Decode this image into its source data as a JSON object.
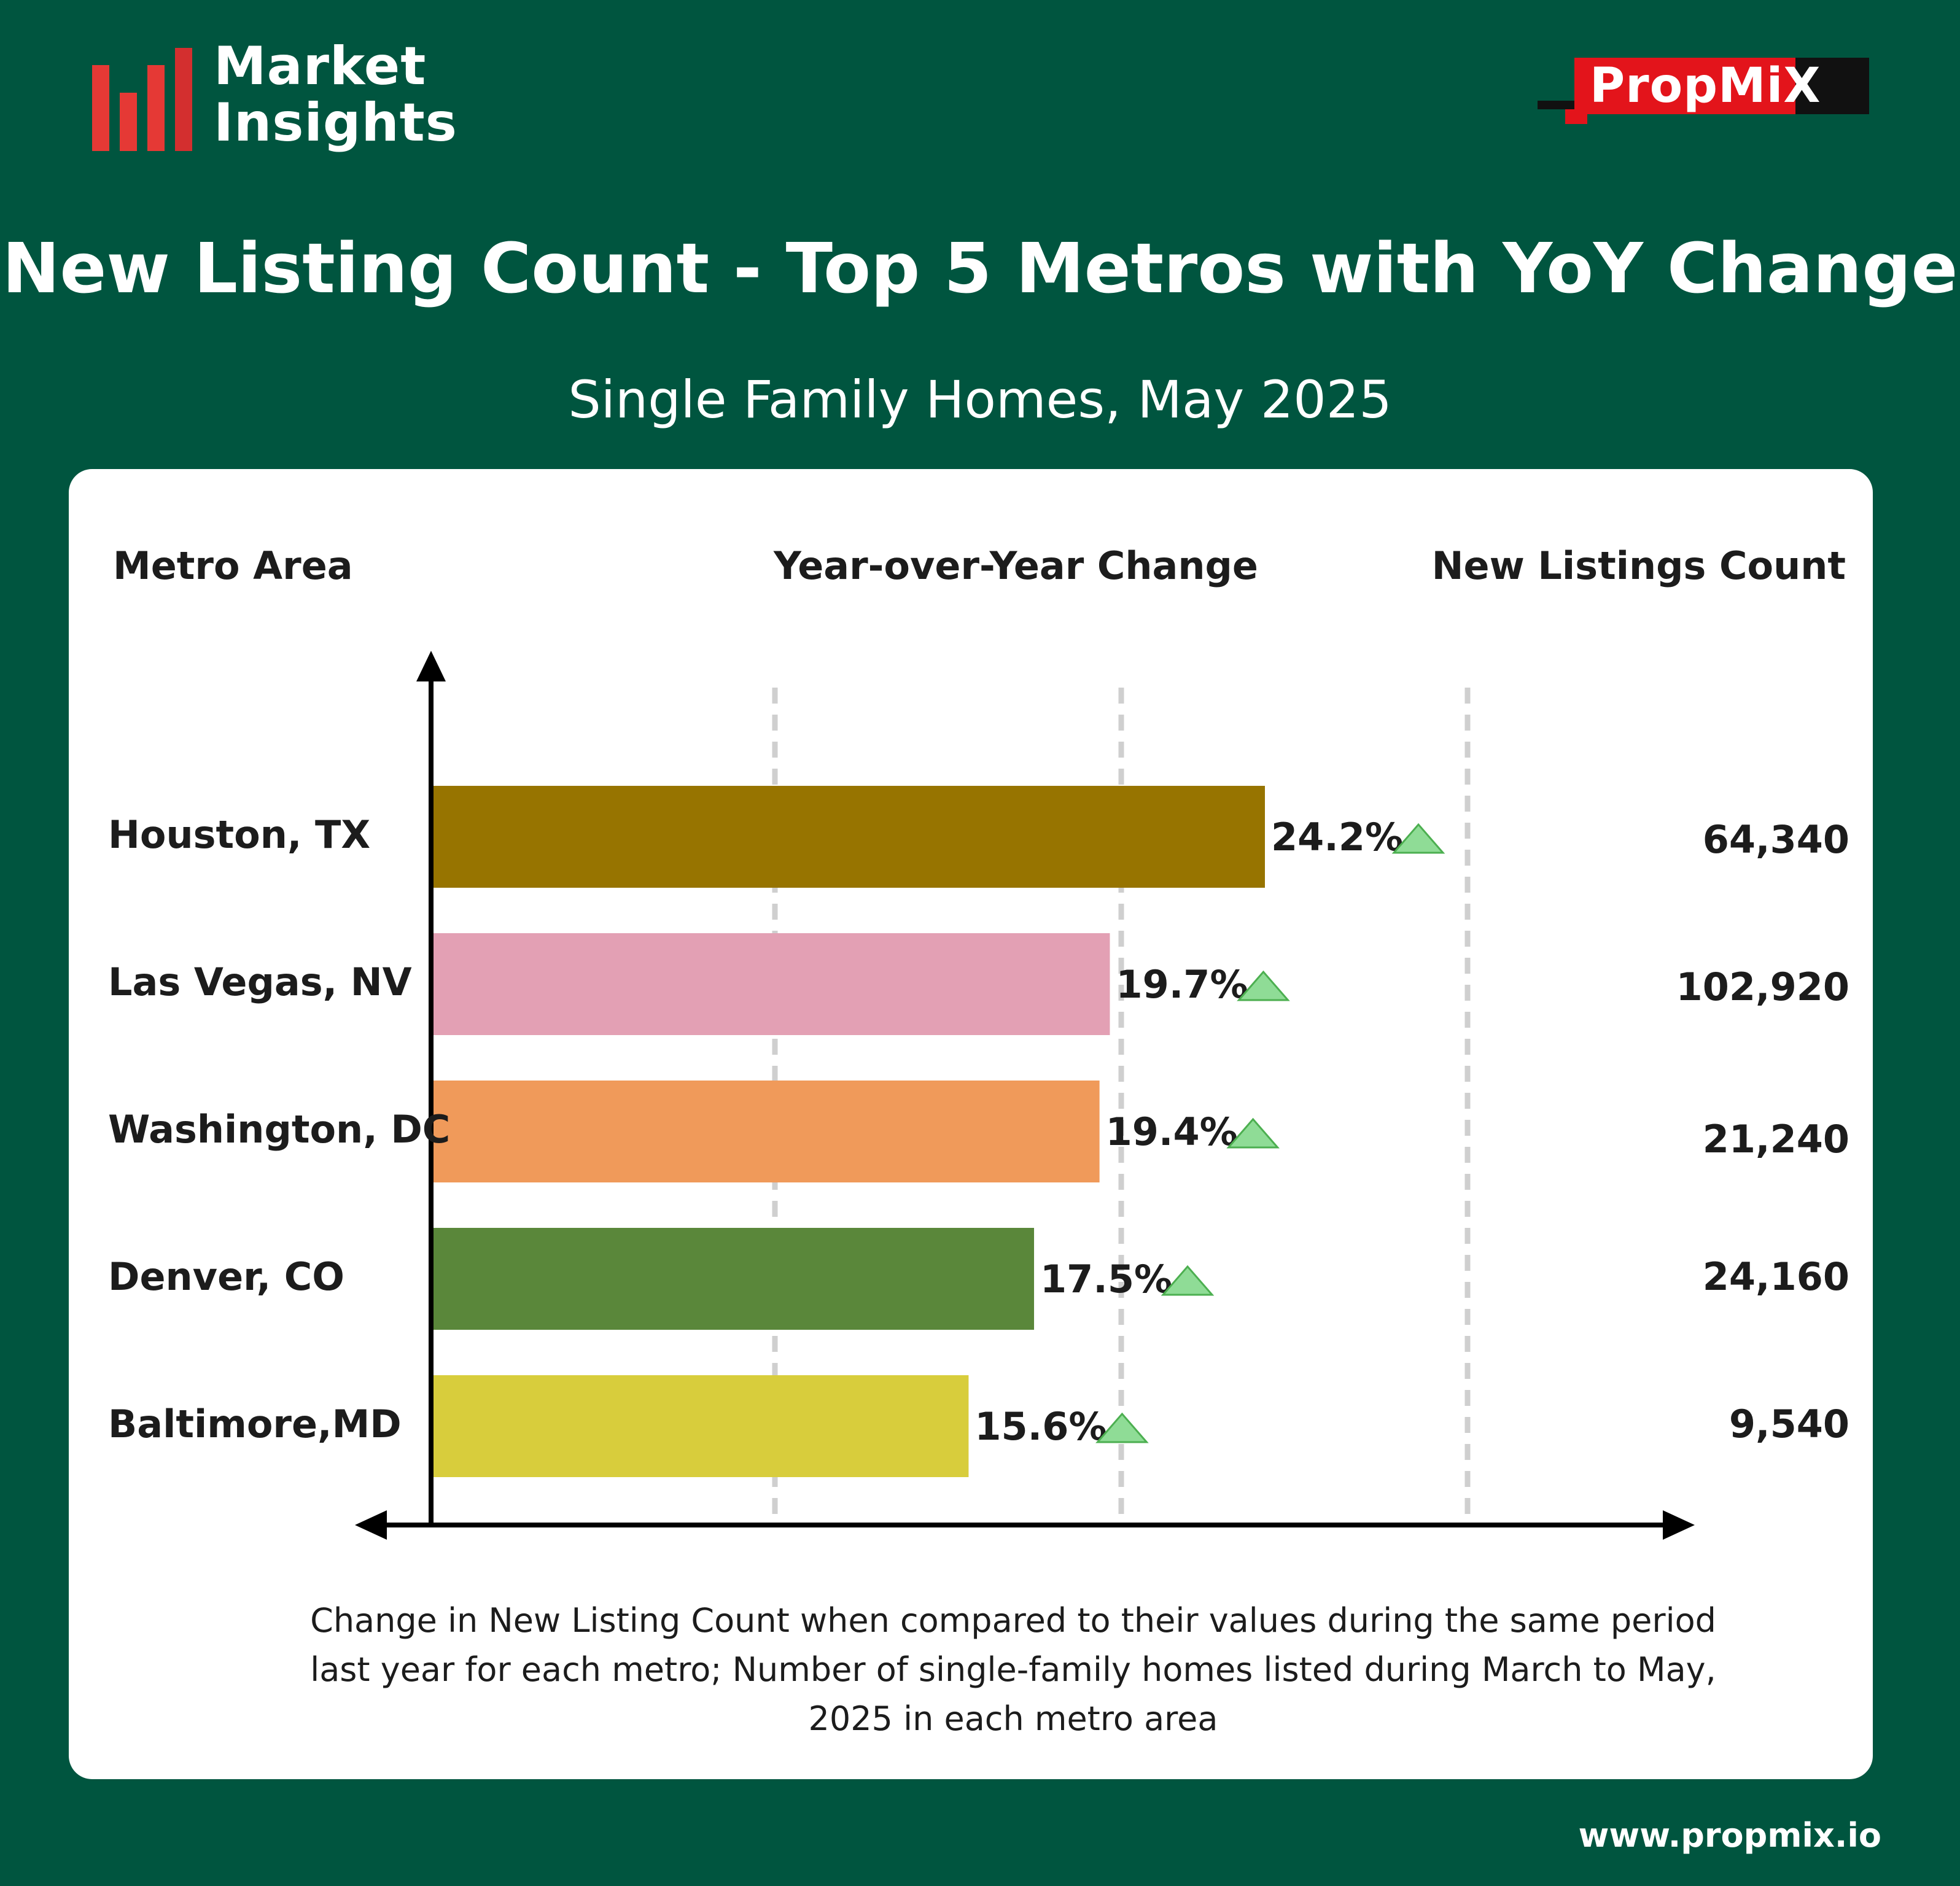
{
  "header": {
    "logo_line1": "Market",
    "logo_line2": "Insights",
    "brand_name": "PropMiX",
    "logo_bar_color": "#e53935",
    "brand_color": "#e3141b"
  },
  "chart_data": {
    "type": "bar",
    "orientation": "horizontal",
    "title": "New Listing Count - Top 5 Metros with YoY Change",
    "subtitle": "Single Family Homes, May 2025",
    "column_headers": {
      "metro": "Metro Area",
      "yoy": "Year-over-Year Change",
      "count": "New Listings Count"
    },
    "categories": [
      "Houston, TX",
      "Las Vegas, NV",
      "Washington, DC",
      "Denver, CO",
      "Baltimore,MD"
    ],
    "values": [
      24.2,
      19.7,
      19.4,
      17.5,
      15.6
    ],
    "value_labels": [
      "24.2%",
      "19.7%",
      "19.4%",
      "17.5%",
      "15.6%"
    ],
    "counts": [
      "64,340",
      "102,920",
      "21,240",
      "24,160",
      "9,540"
    ],
    "bar_colors": [
      "#977400",
      "#e3a0b4",
      "#f09a5a",
      "#5a873a",
      "#d8cd3c"
    ],
    "trend": "up",
    "trend_icon": "up-triangle-icon",
    "trend_color": "#8fdc96",
    "xlim": [
      0,
      36.3
    ],
    "grid": "vertical dashed",
    "footnote": "Change in New Listing Count when compared to their values during the same period last year for each metro; Number of single-family homes listed during March to May, 2025 in each metro area"
  },
  "footer": {
    "url": "www.propmix.io"
  }
}
